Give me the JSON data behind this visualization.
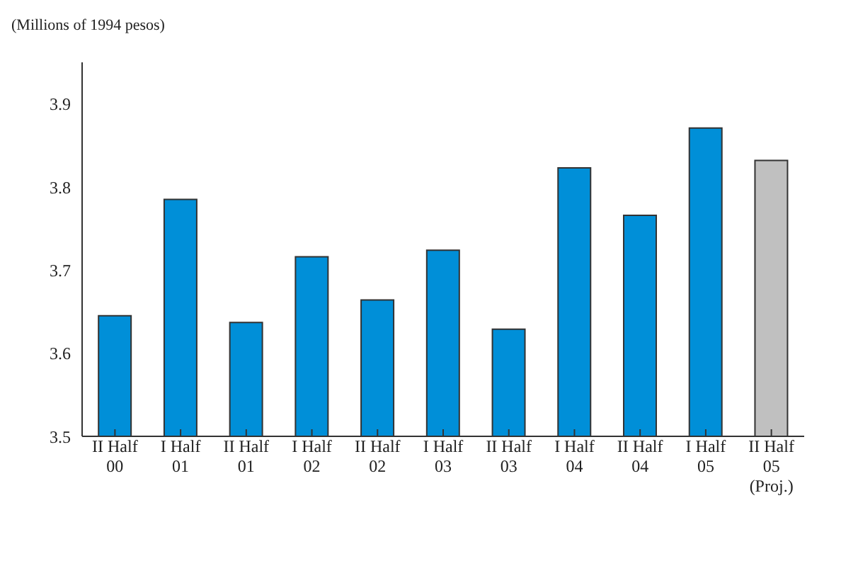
{
  "chart_data": {
    "type": "bar",
    "title": "(Millions of 1994 pesos)",
    "categories": [
      "II Half\n00",
      "I Half\n01",
      "II Half\n01",
      "I Half\n02",
      "II Half\n02",
      "I Half\n03",
      "II Half\n03",
      "I Half\n04",
      "II Half\n04",
      "I Half\n05",
      "II Half\n05\n(Proj.)"
    ],
    "values": [
      3.645,
      3.785,
      3.637,
      3.716,
      3.664,
      3.724,
      3.629,
      3.823,
      3.766,
      3.871,
      3.832
    ],
    "colors": [
      "#008fd8",
      "#008fd8",
      "#008fd8",
      "#008fd8",
      "#008fd8",
      "#008fd8",
      "#008fd8",
      "#008fd8",
      "#008fd8",
      "#008fd8",
      "#c0c0c0"
    ],
    "ylim": [
      3.5,
      3.95
    ],
    "yticks": [
      3.5,
      3.6,
      3.7,
      3.8,
      3.9
    ],
    "grid": false
  }
}
